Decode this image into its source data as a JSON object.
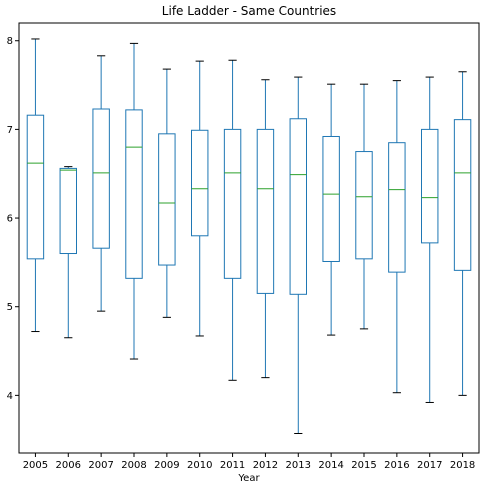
{
  "chart_data": {
    "type": "box",
    "title": "Life Ladder - Same Countries",
    "xlabel": "Year",
    "ylabel": "",
    "ylim": [
      3.35,
      8.2
    ],
    "yticks": [
      4,
      5,
      6,
      7,
      8
    ],
    "grid": false,
    "colors": {
      "box": "#1f77b4",
      "median": "#2ca02c",
      "cap": "#000000"
    },
    "boxes": [
      {
        "label": "2005",
        "min": 4.72,
        "q1": 5.54,
        "median": 6.62,
        "q3": 7.16,
        "max": 8.02
      },
      {
        "label": "2006",
        "min": 4.65,
        "q1": 5.6,
        "median": 6.54,
        "q3": 6.56,
        "max": 6.58
      },
      {
        "label": "2007",
        "min": 4.95,
        "q1": 5.66,
        "median": 6.51,
        "q3": 7.23,
        "max": 7.83
      },
      {
        "label": "2008",
        "min": 4.41,
        "q1": 5.32,
        "median": 6.8,
        "q3": 7.22,
        "max": 7.97
      },
      {
        "label": "2009",
        "min": 4.88,
        "q1": 5.47,
        "median": 6.17,
        "q3": 6.95,
        "max": 7.68
      },
      {
        "label": "2010",
        "min": 4.67,
        "q1": 5.8,
        "median": 6.33,
        "q3": 6.99,
        "max": 7.77
      },
      {
        "label": "2011",
        "min": 4.17,
        "q1": 5.32,
        "median": 6.51,
        "q3": 7.0,
        "max": 7.78
      },
      {
        "label": "2012",
        "min": 4.2,
        "q1": 5.15,
        "median": 6.33,
        "q3": 7.0,
        "max": 7.56
      },
      {
        "label": "2013",
        "min": 3.57,
        "q1": 5.14,
        "median": 6.49,
        "q3": 7.12,
        "max": 7.59
      },
      {
        "label": "2014",
        "min": 4.68,
        "q1": 5.51,
        "median": 6.27,
        "q3": 6.92,
        "max": 7.51
      },
      {
        "label": "2015",
        "min": 4.75,
        "q1": 5.54,
        "median": 6.24,
        "q3": 6.75,
        "max": 7.51
      },
      {
        "label": "2016",
        "min": 4.03,
        "q1": 5.39,
        "median": 6.32,
        "q3": 6.85,
        "max": 7.55
      },
      {
        "label": "2017",
        "min": 3.92,
        "q1": 5.72,
        "median": 6.23,
        "q3": 7.0,
        "max": 7.59
      },
      {
        "label": "2018",
        "min": 4.0,
        "q1": 5.41,
        "median": 6.51,
        "q3": 7.11,
        "max": 7.65
      }
    ]
  }
}
